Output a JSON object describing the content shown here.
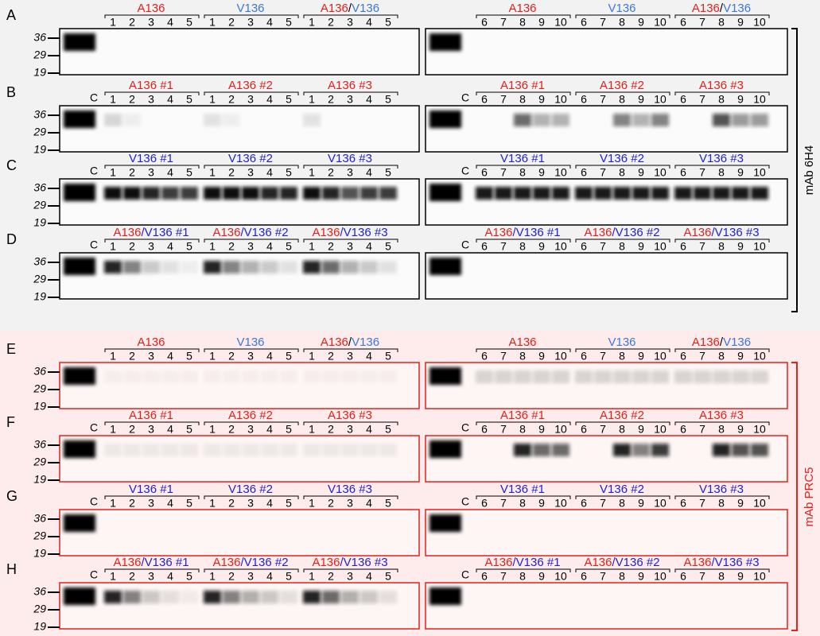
{
  "panels": [
    {
      "letter": "A",
      "control": false,
      "groups": [
        [
          {
            "text": "A136",
            "color": "#e3201b"
          }
        ],
        [
          {
            "text": "V136",
            "color": "#3b78d8"
          }
        ],
        [
          {
            "text": "A136",
            "color": "#e3201b"
          },
          {
            "text": "/",
            "color": "#000000"
          },
          {
            "text": "V136",
            "color": "#3b78d8"
          }
        ]
      ]
    },
    {
      "letter": "B",
      "control": true,
      "groups": [
        [
          {
            "text": "A136 #1",
            "color": "#e3201b"
          }
        ],
        [
          {
            "text": "A136 #2",
            "color": "#e3201b"
          }
        ],
        [
          {
            "text": "A136 #3",
            "color": "#e3201b"
          }
        ]
      ]
    },
    {
      "letter": "C",
      "control": true,
      "groups": [
        [
          {
            "text": "V136 #1",
            "color": "#2222cc"
          }
        ],
        [
          {
            "text": "V136 #2",
            "color": "#2222cc"
          }
        ],
        [
          {
            "text": "V136 #3",
            "color": "#2222cc"
          }
        ]
      ]
    },
    {
      "letter": "D",
      "control": true,
      "groups": [
        [
          {
            "text": "A136",
            "color": "#e3201b"
          },
          {
            "text": "/V136 #1",
            "color": "#2222cc"
          }
        ],
        [
          {
            "text": "A136",
            "color": "#e3201b"
          },
          {
            "text": "/V136 #2",
            "color": "#2222cc"
          }
        ],
        [
          {
            "text": "A136",
            "color": "#e3201b"
          },
          {
            "text": "/V136 #3",
            "color": "#2222cc"
          }
        ]
      ]
    },
    {
      "letter": "E",
      "control": false,
      "groups": [
        [
          {
            "text": "A136",
            "color": "#e3201b"
          }
        ],
        [
          {
            "text": "V136",
            "color": "#3b78d8"
          }
        ],
        [
          {
            "text": "A136",
            "color": "#e3201b"
          },
          {
            "text": "/",
            "color": "#000000"
          },
          {
            "text": "V136",
            "color": "#3b78d8"
          }
        ]
      ]
    },
    {
      "letter": "F",
      "control": true,
      "groups": [
        [
          {
            "text": "A136 #1",
            "color": "#e3201b"
          }
        ],
        [
          {
            "text": "A136 #2",
            "color": "#e3201b"
          }
        ],
        [
          {
            "text": "A136 #3",
            "color": "#e3201b"
          }
        ]
      ]
    },
    {
      "letter": "G",
      "control": true,
      "groups": [
        [
          {
            "text": "V136 #1",
            "color": "#2222cc"
          }
        ],
        [
          {
            "text": "V136 #2",
            "color": "#2222cc"
          }
        ],
        [
          {
            "text": "V136 #3",
            "color": "#2222cc"
          }
        ]
      ]
    },
    {
      "letter": "H",
      "control": true,
      "groups": [
        [
          {
            "text": "A136",
            "color": "#e3201b"
          },
          {
            "text": "/V136 #1",
            "color": "#2222cc"
          }
        ],
        [
          {
            "text": "A136",
            "color": "#e3201b"
          },
          {
            "text": "/V136 #2",
            "color": "#2222cc"
          }
        ],
        [
          {
            "text": "A136",
            "color": "#e3201b"
          },
          {
            "text": "/V136 #3",
            "color": "#2222cc"
          }
        ]
      ]
    }
  ],
  "lanes_left": [
    "1",
    "2",
    "3",
    "4",
    "5"
  ],
  "lanes_right": [
    "6",
    "7",
    "8",
    "9",
    "10"
  ],
  "control_label": "C",
  "markers": [
    "36",
    "29",
    "19"
  ],
  "antibodies": [
    {
      "text": "mAb 6H4",
      "color": "#000000"
    },
    {
      "text": "mAb PRC5",
      "color": "#e3201b"
    }
  ]
}
